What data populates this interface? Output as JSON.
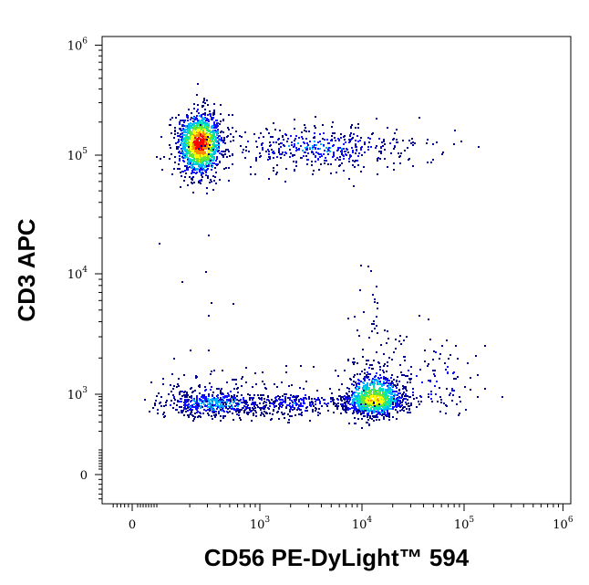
{
  "chart_data": {
    "type": "scatter",
    "subtype": "flow-cytometry density dot plot",
    "title": "",
    "xlabel": "CD56 PE-DyLight™ 594",
    "ylabel": "CD3 APC",
    "x_scale": "biexponential",
    "y_scale": "biexponential",
    "xlim": [
      -300,
      1200000
    ],
    "ylim": [
      -300,
      1200000
    ],
    "x_ticks": [
      {
        "value": 0,
        "base": "0",
        "exp": ""
      },
      {
        "value": 1000,
        "base": "10",
        "exp": "3"
      },
      {
        "value": 10000,
        "base": "10",
        "exp": "4"
      },
      {
        "value": 100000,
        "base": "10",
        "exp": "5"
      },
      {
        "value": 1000000,
        "base": "10",
        "exp": "6"
      }
    ],
    "y_ticks": [
      {
        "value": 0,
        "base": "0",
        "exp": ""
      },
      {
        "value": 1000,
        "base": "10",
        "exp": "3"
      },
      {
        "value": 10000,
        "base": "10",
        "exp": "4"
      },
      {
        "value": 100000,
        "base": "10",
        "exp": "5"
      },
      {
        "value": 1000000,
        "base": "10",
        "exp": "6"
      }
    ],
    "grid": false,
    "legend": "none",
    "density_colors": [
      "#00008b",
      "#1010ff",
      "#00b4ff",
      "#00e6b4",
      "#64e632",
      "#ffff00",
      "#ff8c00",
      "#ff0000"
    ],
    "populations": [
      {
        "x_center": 250,
        "y_center": 130000,
        "x_spread": 0.11,
        "y_spread": 0.14,
        "count": 1400,
        "peak_density": 1.0
      },
      {
        "x_center": 4000,
        "y_center": 120000,
        "x_spread": 0.5,
        "y_spread": 0.1,
        "count": 450,
        "peak_density": 0.22
      },
      {
        "x_center": 13000,
        "y_center": 800,
        "x_spread": 0.15,
        "y_spread": 0.15,
        "count": 1100,
        "peak_density": 0.75
      },
      {
        "x_center": 350,
        "y_center": 700,
        "x_spread": 0.28,
        "y_spread": 0.14,
        "count": 550,
        "peak_density": 0.3
      },
      {
        "x_center": 2000,
        "y_center": 700,
        "x_spread": 0.35,
        "y_spread": 0.12,
        "count": 320,
        "peak_density": 0.2
      },
      {
        "x_center": 50000,
        "y_center": 1400,
        "x_spread": 0.3,
        "y_spread": 0.2,
        "count": 120,
        "peak_density": 0.12
      },
      {
        "x_center": 12000,
        "y_center": 4000,
        "x_spread": 0.12,
        "y_spread": 0.25,
        "count": 35,
        "peak_density": 0.05
      },
      {
        "x_center": 250,
        "y_center": 20000,
        "x_spread": 0.3,
        "y_spread": 0.5,
        "count": 12,
        "peak_density": 0.05
      }
    ]
  }
}
